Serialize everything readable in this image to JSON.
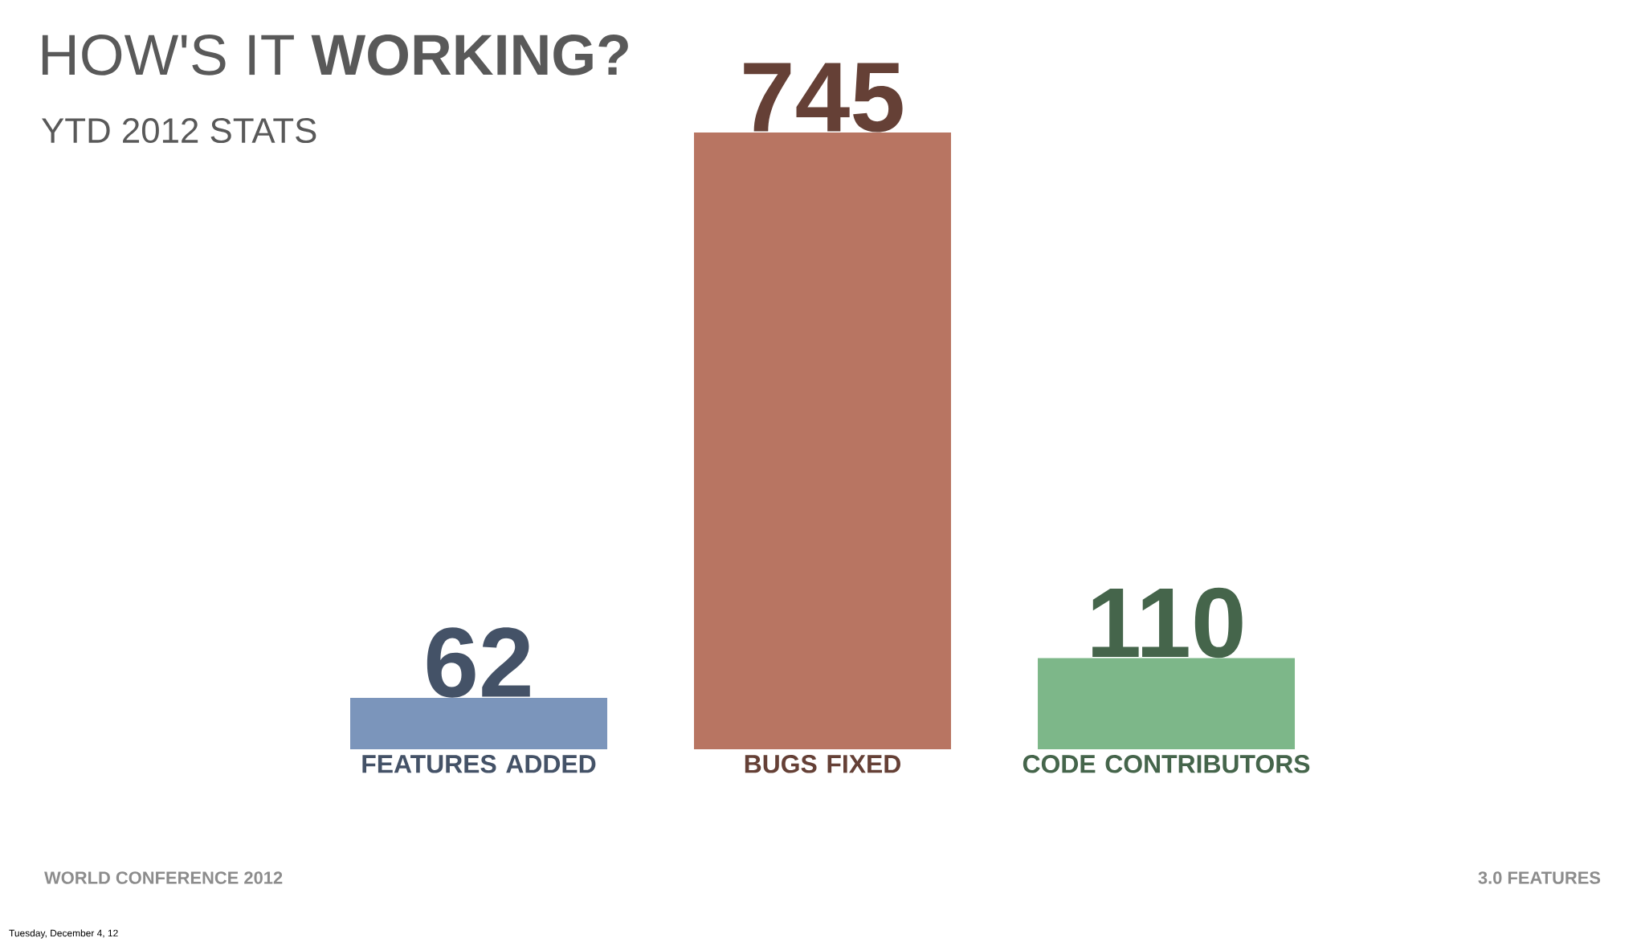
{
  "chart_data": {
    "type": "bar",
    "title": "HOW'S IT **WORKING?**",
    "subtitle": "YTD 2012 STATS",
    "categories": [
      "FEATURES ADDED",
      "BUGS FIXED",
      "CODE CONTRIBUTORS"
    ],
    "values": [
      62,
      745,
      110
    ],
    "colors": [
      "#7b95bb",
      "#b87562",
      "#7db789"
    ],
    "data_labels": true,
    "annotations": [
      "WORLD CONFERENCE 2012",
      "3.0 FEATURES",
      "Tuesday, December 4, 12"
    ]
  }
}
